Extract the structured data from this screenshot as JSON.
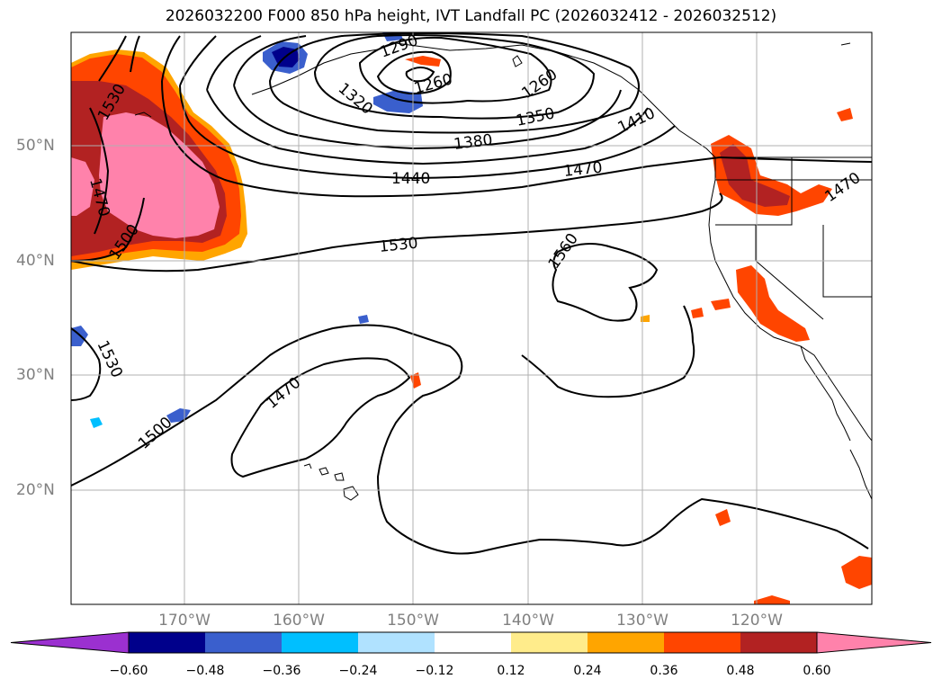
{
  "title": "2026032200 F000 850 hPa height, IVT Landfall PC (2026032412 - 2026032512)",
  "map": {
    "lon_range": [
      -180,
      -110
    ],
    "lat_range": [
      10,
      60
    ],
    "lat_labels": [
      "50°N",
      "40°N",
      "30°N",
      "20°N"
    ],
    "lat_values": [
      50,
      40,
      30,
      20
    ],
    "lon_labels": [
      "170°W",
      "160°W",
      "150°W",
      "140°W",
      "130°W",
      "120°W"
    ],
    "lon_values": [
      -170,
      -160,
      -150,
      -140,
      -130,
      -120
    ],
    "grid": true,
    "contour_labels": [
      {
        "text": "1290"
      },
      {
        "text": "1260"
      },
      {
        "text": "1320"
      },
      {
        "text": "1260"
      },
      {
        "text": "1350"
      },
      {
        "text": "1410"
      },
      {
        "text": "1380"
      },
      {
        "text": "1530"
      },
      {
        "text": "1470"
      },
      {
        "text": "1440"
      },
      {
        "text": "1470"
      },
      {
        "text": "1470"
      },
      {
        "text": "1500"
      },
      {
        "text": "1530"
      },
      {
        "text": "1560"
      },
      {
        "text": "1530"
      },
      {
        "text": "1470"
      },
      {
        "text": "1500"
      }
    ]
  },
  "colorbar": {
    "colors": [
      "#9b30d0",
      "#00008b",
      "#3a5fcd",
      "#00bfff",
      "#b0e2ff",
      "#ffffff",
      "#ffec8b",
      "#ffa500",
      "#ff4500",
      "#b22222",
      "#ff82ab"
    ],
    "labels": [
      "−0.60",
      "−0.48",
      "−0.36",
      "−0.24",
      "−0.12",
      "0.12",
      "0.24",
      "0.36",
      "0.48",
      "0.60"
    ]
  }
}
